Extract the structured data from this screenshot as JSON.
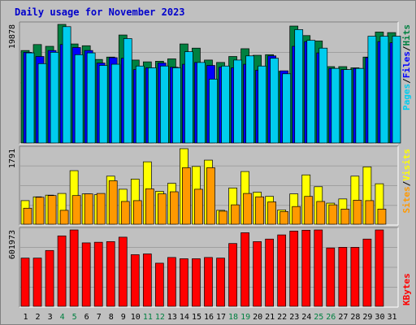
{
  "window": {
    "title": "Daily usage for November 2023"
  },
  "chart_data": [
    {
      "type": "bar",
      "title": "Daily usage for November 2023",
      "categories": [
        "1",
        "2",
        "3",
        "4",
        "5",
        "6",
        "7",
        "8",
        "9",
        "10",
        "11",
        "12",
        "13",
        "14",
        "15",
        "16",
        "17",
        "18",
        "19",
        "20",
        "21",
        "22",
        "23",
        "24",
        "25",
        "26",
        "27",
        "28",
        "29",
        "30",
        "31"
      ],
      "weekend_days": [
        "4",
        "5",
        "11",
        "12",
        "18",
        "19",
        "25",
        "26"
      ],
      "y_max_label": "19878",
      "ylim": [
        0,
        19878
      ],
      "series": [
        {
          "name": "Hits",
          "color": "#008040",
          "values": [
            15500,
            16500,
            16200,
            19878,
            16600,
            16300,
            14000,
            14400,
            18100,
            13900,
            13600,
            13700,
            14100,
            16600,
            15900,
            13900,
            13500,
            14500,
            15800,
            14700,
            14800,
            12000,
            19600,
            18000,
            17100,
            12800,
            12800,
            12600,
            14400,
            18600,
            18500
          ]
        },
        {
          "name": "Files",
          "color": "#0000ff",
          "values": [
            15200,
            14500,
            15500,
            16500,
            16000,
            15500,
            13400,
            14300,
            14200,
            12300,
            12600,
            13400,
            12700,
            13200,
            13500,
            13000,
            12700,
            12600,
            13200,
            12200,
            14600,
            12100,
            16200,
            17000,
            15100,
            12500,
            12300,
            12500,
            14300,
            17000,
            16800
          ]
        },
        {
          "name": "Pages",
          "color": "#00ccee",
          "values": [
            15100,
            13300,
            15200,
            19500,
            14800,
            15100,
            13000,
            13200,
            17500,
            12900,
            12600,
            12900,
            12600,
            15300,
            13500,
            10700,
            12900,
            13900,
            14600,
            12900,
            14200,
            11600,
            19000,
            17200,
            15900,
            12500,
            12300,
            12500,
            17900,
            17900,
            17900
          ]
        }
      ]
    },
    {
      "type": "bar",
      "categories": [
        "1",
        "2",
        "3",
        "4",
        "5",
        "6",
        "7",
        "8",
        "9",
        "10",
        "11",
        "12",
        "13",
        "14",
        "15",
        "16",
        "17",
        "18",
        "19",
        "20",
        "21",
        "22",
        "23",
        "24",
        "25",
        "26",
        "27",
        "28",
        "29",
        "30",
        "31"
      ],
      "y_max_label": "1791",
      "ylim": [
        0,
        1791
      ],
      "series": [
        {
          "name": "Visits",
          "color": "#ffff00",
          "values": [
            560,
            650,
            690,
            730,
            1270,
            720,
            700,
            1140,
            830,
            1070,
            1480,
            780,
            970,
            1791,
            1370,
            1520,
            330,
            860,
            1250,
            760,
            660,
            340,
            720,
            1170,
            890,
            500,
            600,
            1140,
            1360,
            960,
            0
          ]
        },
        {
          "name": "Sites",
          "color": "#ff9900",
          "values": [
            380,
            640,
            680,
            330,
            680,
            720,
            730,
            1030,
            540,
            560,
            840,
            720,
            770,
            1340,
            830,
            1340,
            310,
            460,
            730,
            650,
            530,
            300,
            420,
            660,
            540,
            460,
            360,
            570,
            560,
            360,
            0
          ]
        }
      ]
    },
    {
      "type": "bar",
      "categories": [
        "1",
        "2",
        "3",
        "4",
        "5",
        "6",
        "7",
        "8",
        "9",
        "10",
        "11",
        "12",
        "13",
        "14",
        "15",
        "16",
        "17",
        "18",
        "19",
        "20",
        "21",
        "22",
        "23",
        "24",
        "25",
        "26",
        "27",
        "28",
        "29",
        "30",
        "31"
      ],
      "y_max_label": "601973",
      "ylim": [
        0,
        601973
      ],
      "series": [
        {
          "name": "KBytes",
          "color": "#ff0000",
          "values": [
            380000,
            380000,
            440000,
            555000,
            601973,
            500000,
            505000,
            510000,
            545000,
            407000,
            413000,
            340000,
            385000,
            375000,
            375000,
            385000,
            380000,
            495000,
            580000,
            510000,
            530000,
            563000,
            593000,
            600000,
            601973,
            460000,
            465000,
            465000,
            530000,
            601973,
            0
          ]
        }
      ]
    }
  ]
}
